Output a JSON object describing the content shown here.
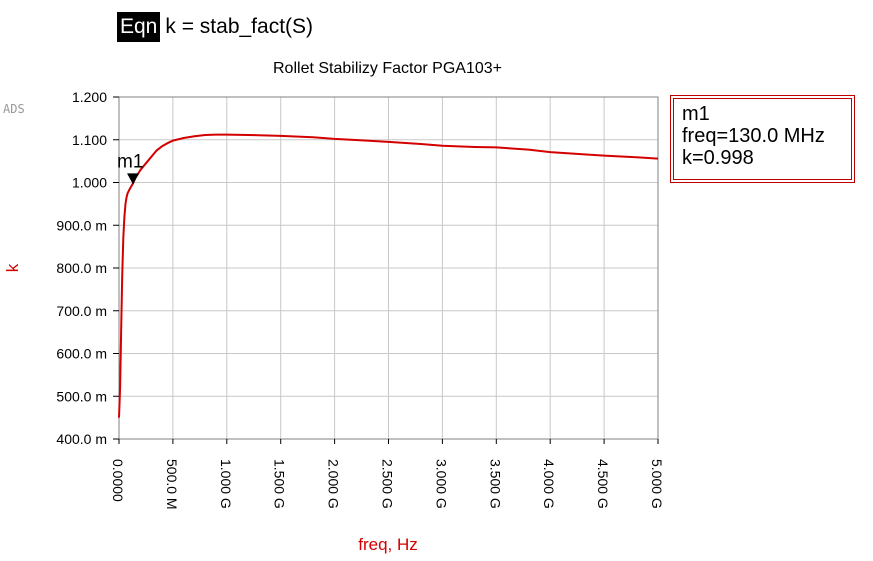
{
  "equation": {
    "tag": "Eqn",
    "expression": "k = stab_fact(S)"
  },
  "ads_logo": "ADS",
  "marker_readout": {
    "name": "m1",
    "freq": "freq=130.0 MHz",
    "k": "k=0.998"
  },
  "colors": {
    "trace": "#d40000",
    "axis_label": "#d40000",
    "grid": "#c8c8c8",
    "marker_box": "#c00000"
  },
  "chart_data": {
    "type": "line",
    "title": "Rollet Stabilizy Factor PGA103+",
    "xlabel": "freq, Hz",
    "ylabel": "k",
    "xlim": [
      0,
      5000000000
    ],
    "ylim": [
      0.4,
      1.2
    ],
    "grid": true,
    "x_ticks": [
      0,
      500000000,
      1000000000,
      1500000000,
      2000000000,
      2500000000,
      3000000000,
      3500000000,
      4000000000,
      4500000000,
      5000000000
    ],
    "x_tick_labels": [
      "0.0000",
      "500.0 M",
      "1.000 G",
      "1.500 G",
      "2.000 G",
      "2.500 G",
      "3.000 G",
      "3.500 G",
      "4.000 G",
      "4.500 G",
      "5.000 G"
    ],
    "y_ticks": [
      0.4,
      0.5,
      0.6,
      0.7,
      0.8,
      0.9,
      1.0,
      1.1,
      1.2
    ],
    "y_tick_labels": [
      "400.0 m",
      "500.0 m",
      "600.0 m",
      "700.0 m",
      "800.0 m",
      "900.0 m",
      "1.000",
      "1.100",
      "1.200"
    ],
    "series": [
      {
        "x": [
          0,
          10000000,
          20000000,
          30000000,
          40000000,
          50000000,
          60000000,
          70000000,
          80000000,
          100000000,
          130000000,
          150000000,
          200000000,
          250000000,
          300000000,
          350000000,
          400000000,
          450000000,
          500000000,
          600000000,
          700000000,
          800000000,
          900000000,
          1000000000,
          1200000000,
          1500000000,
          1800000000,
          2000000000,
          2300000000,
          2500000000,
          2800000000,
          3000000000,
          3300000000,
          3500000000,
          3800000000,
          4000000000,
          4300000000,
          4500000000,
          4800000000,
          5000000000
        ],
        "y": [
          0.45,
          0.52,
          0.66,
          0.78,
          0.87,
          0.92,
          0.95,
          0.965,
          0.975,
          0.985,
          0.998,
          1.01,
          1.03,
          1.045,
          1.06,
          1.075,
          1.085,
          1.092,
          1.098,
          1.104,
          1.108,
          1.111,
          1.112,
          1.112,
          1.111,
          1.109,
          1.106,
          1.102,
          1.098,
          1.095,
          1.09,
          1.086,
          1.083,
          1.082,
          1.077,
          1.071,
          1.066,
          1.063,
          1.059,
          1.056
        ]
      }
    ],
    "markers": [
      {
        "name": "m1",
        "x": 130000000,
        "y": 0.998
      }
    ]
  }
}
